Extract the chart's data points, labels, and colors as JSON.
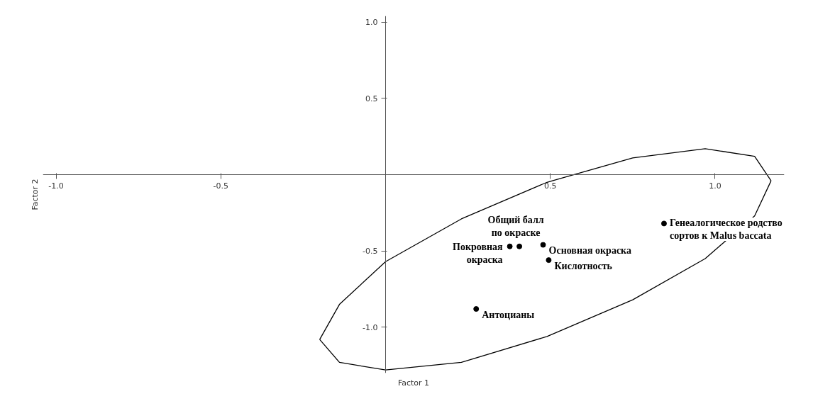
{
  "chart_data": {
    "type": "scatter",
    "xlabel": "Factor 1",
    "ylabel": "Factor 2",
    "xlim": [
      -1.04,
      1.21
    ],
    "ylim": [
      -1.3,
      1.04
    ],
    "xticks": [
      {
        "value": -1.0,
        "label": "-1.0"
      },
      {
        "value": -0.5,
        "label": "-0.5"
      },
      {
        "value": 0.5,
        "label": "0.5"
      },
      {
        "value": 1.0,
        "label": "1.0"
      }
    ],
    "yticks": [
      {
        "value": -1.0,
        "label": "-1.0"
      },
      {
        "value": -0.5,
        "label": "-0.5"
      },
      {
        "value": 0.5,
        "label": "0.5"
      },
      {
        "value": 1.0,
        "label": "1.0"
      }
    ],
    "grid": false,
    "marker": "circle",
    "series": [
      {
        "color": "#000000",
        "x": [
          0.377,
          0.406,
          0.478,
          0.495,
          0.275,
          0.845
        ],
        "values": [
          -0.47,
          -0.47,
          -0.46,
          -0.56,
          -0.88,
          -0.32
        ]
      },
      {
        "type": "line",
        "marker": "none",
        "color": "#000000",
        "x": [
          -0.2,
          -0.14,
          0.0,
          0.23,
          0.49,
          0.75,
          0.97,
          1.12,
          1.17
        ],
        "values": [
          -1.08,
          -0.85,
          -0.57,
          -0.29,
          -0.05,
          0.11,
          0.17,
          0.12,
          -0.04
        ]
      },
      {
        "type": "line",
        "marker": "none",
        "color": "#000000",
        "x": [
          -0.2,
          -0.14,
          0.0,
          0.23,
          0.49,
          0.75,
          0.97,
          1.12,
          1.17
        ],
        "values": [
          -1.08,
          -1.23,
          -1.28,
          -1.23,
          -1.06,
          -0.82,
          -0.55,
          -0.27,
          -0.04
        ]
      }
    ],
    "annotations": [
      {
        "text": "Покровная\nокраска",
        "x": 0.377,
        "y": -0.47
      },
      {
        "text": "Общий балл\nпо окраске",
        "x": 0.406,
        "y": -0.47
      },
      {
        "text": "Основная окраска",
        "x": 0.478,
        "y": -0.46
      },
      {
        "text": "Кислотность",
        "x": 0.495,
        "y": -0.56
      },
      {
        "text": "Антоцианы",
        "x": 0.275,
        "y": -0.88
      },
      {
        "text": "Генеалогическое родство\nсортов к Malus baccata",
        "x": 0.845,
        "y": -0.32
      }
    ]
  }
}
